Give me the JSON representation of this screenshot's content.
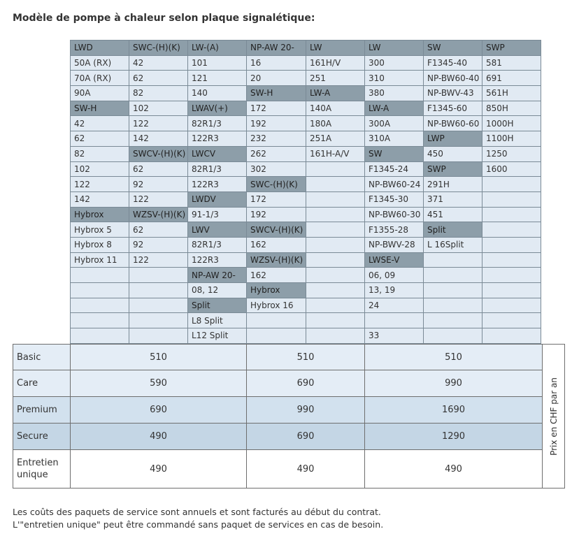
{
  "title": "Modèle de pompe à chaleur selon plaque signalétique:",
  "models": [
    [
      [
        "LWD",
        "h"
      ],
      [
        "SWC-(H)(K)",
        "h"
      ],
      [
        "LW-(A)",
        "h"
      ],
      [
        "NP-AW 20-",
        "h"
      ],
      [
        "LW",
        "h"
      ],
      [
        "LW",
        "h"
      ],
      [
        "SW",
        "h"
      ],
      [
        "SWP",
        "h"
      ]
    ],
    [
      [
        "50A (RX)",
        ""
      ],
      [
        "42",
        ""
      ],
      [
        "101",
        ""
      ],
      [
        "16",
        ""
      ],
      [
        "161H/V",
        ""
      ],
      [
        "300",
        ""
      ],
      [
        "F1345-40",
        ""
      ],
      [
        "581",
        ""
      ]
    ],
    [
      [
        "70A (RX)",
        ""
      ],
      [
        "62",
        ""
      ],
      [
        "121",
        ""
      ],
      [
        "20",
        ""
      ],
      [
        "251",
        ""
      ],
      [
        "310",
        ""
      ],
      [
        "NP-BW60-40",
        ""
      ],
      [
        "691",
        ""
      ]
    ],
    [
      [
        "90A",
        ""
      ],
      [
        "82",
        ""
      ],
      [
        "140",
        ""
      ],
      [
        "SW-H",
        "h"
      ],
      [
        "LW-A",
        "h"
      ],
      [
        "380",
        ""
      ],
      [
        "NP-BWV-43",
        ""
      ],
      [
        "561H",
        ""
      ]
    ],
    [
      [
        "SW-H",
        "h"
      ],
      [
        "102",
        ""
      ],
      [
        "LWAV(+)",
        "h"
      ],
      [
        "172",
        ""
      ],
      [
        "140A",
        ""
      ],
      [
        "LW-A",
        "h"
      ],
      [
        "F1345-60",
        ""
      ],
      [
        "850H",
        ""
      ]
    ],
    [
      [
        "42",
        ""
      ],
      [
        "122",
        ""
      ],
      [
        "82R1/3",
        ""
      ],
      [
        "192",
        ""
      ],
      [
        "180A",
        ""
      ],
      [
        "300A",
        ""
      ],
      [
        "NP-BW60-60",
        ""
      ],
      [
        "1000H",
        ""
      ]
    ],
    [
      [
        "62",
        ""
      ],
      [
        "142",
        ""
      ],
      [
        "122R3",
        ""
      ],
      [
        "232",
        ""
      ],
      [
        "251A",
        ""
      ],
      [
        "310A",
        ""
      ],
      [
        "LWP",
        "h"
      ],
      [
        "1100H",
        ""
      ]
    ],
    [
      [
        "82",
        ""
      ],
      [
        "SWCV-(H)(K)",
        "h"
      ],
      [
        "LWCV",
        "h"
      ],
      [
        "262",
        ""
      ],
      [
        "161H-A/V",
        ""
      ],
      [
        "SW",
        "h"
      ],
      [
        "450",
        ""
      ],
      [
        "1250",
        ""
      ]
    ],
    [
      [
        "102",
        ""
      ],
      [
        "62",
        ""
      ],
      [
        "82R1/3",
        ""
      ],
      [
        "302",
        ""
      ],
      [
        "",
        ""
      ],
      [
        "F1345-24",
        ""
      ],
      [
        "SWP",
        "h"
      ],
      [
        "1600",
        ""
      ]
    ],
    [
      [
        "122",
        ""
      ],
      [
        "92",
        ""
      ],
      [
        "122R3",
        ""
      ],
      [
        "SWC-(H)(K)",
        "h"
      ],
      [
        "",
        ""
      ],
      [
        "NP-BW60-24",
        ""
      ],
      [
        "291H",
        ""
      ],
      [
        "",
        ""
      ]
    ],
    [
      [
        "142",
        ""
      ],
      [
        "122",
        ""
      ],
      [
        "LWDV",
        "h"
      ],
      [
        "172",
        ""
      ],
      [
        "",
        ""
      ],
      [
        "F1345-30",
        ""
      ],
      [
        "371",
        ""
      ],
      [
        "",
        ""
      ]
    ],
    [
      [
        "Hybrox",
        "h"
      ],
      [
        "WZSV-(H)(K)",
        "h"
      ],
      [
        "91-1/3",
        ""
      ],
      [
        "192",
        ""
      ],
      [
        "",
        ""
      ],
      [
        "NP-BW60-30",
        ""
      ],
      [
        "451",
        ""
      ],
      [
        "",
        ""
      ]
    ],
    [
      [
        "Hybrox 5",
        ""
      ],
      [
        "62",
        ""
      ],
      [
        "LWV",
        "h"
      ],
      [
        "SWCV-(H)(K)",
        "h"
      ],
      [
        "",
        ""
      ],
      [
        "F1355-28",
        ""
      ],
      [
        "Split",
        "h"
      ],
      [
        "",
        ""
      ]
    ],
    [
      [
        "Hybrox 8",
        ""
      ],
      [
        "92",
        ""
      ],
      [
        "82R1/3",
        ""
      ],
      [
        "162",
        ""
      ],
      [
        "",
        ""
      ],
      [
        "NP-BWV-28",
        ""
      ],
      [
        "L 16Split",
        ""
      ],
      [
        "",
        ""
      ]
    ],
    [
      [
        "Hybrox 11",
        ""
      ],
      [
        "122",
        ""
      ],
      [
        "122R3",
        ""
      ],
      [
        "WZSV-(H)(K)",
        "h"
      ],
      [
        "",
        ""
      ],
      [
        "LWSE-V",
        "h"
      ],
      [
        "",
        ""
      ],
      [
        "",
        ""
      ]
    ],
    [
      [
        "",
        ""
      ],
      [
        "",
        ""
      ],
      [
        "NP-AW 20-",
        "h"
      ],
      [
        "162",
        ""
      ],
      [
        "",
        ""
      ],
      [
        "06, 09",
        ""
      ],
      [
        "",
        ""
      ],
      [
        "",
        ""
      ]
    ],
    [
      [
        "",
        ""
      ],
      [
        "",
        ""
      ],
      [
        "08, 12",
        ""
      ],
      [
        "Hybrox",
        "h"
      ],
      [
        "",
        ""
      ],
      [
        "13, 19",
        ""
      ],
      [
        "",
        ""
      ],
      [
        "",
        ""
      ]
    ],
    [
      [
        "",
        ""
      ],
      [
        "",
        ""
      ],
      [
        "Split",
        "h"
      ],
      [
        "Hybrox 16",
        ""
      ],
      [
        "",
        ""
      ],
      [
        "24",
        ""
      ],
      [
        "",
        ""
      ],
      [
        "",
        ""
      ]
    ],
    [
      [
        "",
        ""
      ],
      [
        "",
        ""
      ],
      [
        "L8 Split",
        ""
      ],
      [
        "",
        ""
      ],
      [
        "",
        ""
      ],
      [
        "",
        ""
      ],
      [
        "",
        ""
      ],
      [
        "",
        ""
      ]
    ],
    [
      [
        "",
        ""
      ],
      [
        "",
        ""
      ],
      [
        "L12 Split",
        ""
      ],
      [
        "",
        ""
      ],
      [
        "",
        ""
      ],
      [
        "33",
        ""
      ],
      [
        "",
        ""
      ],
      [
        "",
        ""
      ]
    ]
  ],
  "prices": {
    "side_label": "Prix en CHF par an",
    "rows": [
      {
        "label": "Basic",
        "values": [
          "510",
          "510",
          "510"
        ]
      },
      {
        "label": "Care",
        "values": [
          "590",
          "690",
          "990"
        ]
      },
      {
        "label": "Premium",
        "values": [
          "690",
          "990",
          "1690"
        ]
      },
      {
        "label": "Secure",
        "values": [
          "490",
          "690",
          "1290"
        ]
      },
      {
        "label": "Entretien unique",
        "values": [
          "490",
          "490",
          "490"
        ]
      }
    ]
  },
  "notes": [
    "Les coûts des paquets de service sont annuels et sont facturés au début du contrat.",
    "L'\"entretien unique\" peut être commandé sans paquet de services en cas de besoin."
  ]
}
